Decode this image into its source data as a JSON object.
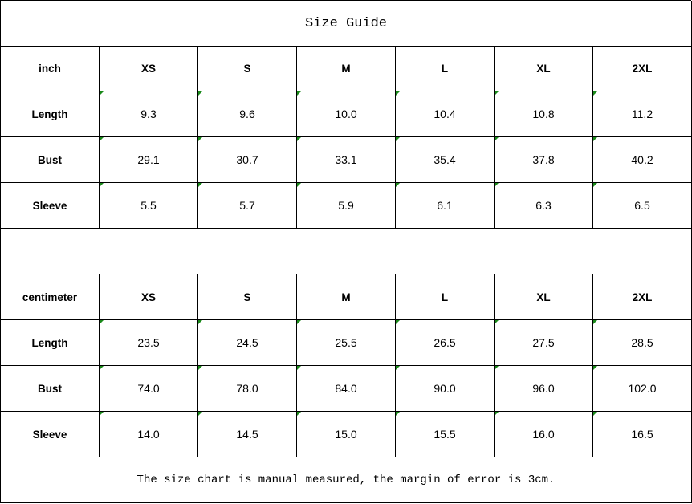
{
  "title": "Size Guide",
  "inch_table": {
    "headers": [
      "inch",
      "XS",
      "S",
      "M",
      "L",
      "XL",
      "2XL"
    ],
    "rows": [
      [
        "Length",
        "9.3",
        "9.6",
        "10.0",
        "10.4",
        "10.8",
        "11.2"
      ],
      [
        "Bust",
        "29.1",
        "30.7",
        "33.1",
        "35.4",
        "37.8",
        "40.2"
      ],
      [
        "Sleeve",
        "5.5",
        "5.7",
        "5.9",
        "6.1",
        "6.3",
        "6.5"
      ]
    ]
  },
  "cm_table": {
    "headers": [
      "centimeter",
      "XS",
      "S",
      "M",
      "L",
      "XL",
      "2XL"
    ],
    "rows": [
      [
        "Length",
        "23.5",
        "24.5",
        "25.5",
        "26.5",
        "27.5",
        "28.5"
      ],
      [
        "Bust",
        "74.0",
        "78.0",
        "84.0",
        "90.0",
        "96.0",
        "102.0"
      ],
      [
        "Sleeve",
        "14.0",
        "14.5",
        "15.0",
        "15.5",
        "16.0",
        "16.5"
      ]
    ]
  },
  "note": "The size chart is manual measured, the margin of error is 3cm.",
  "colors": {
    "error_indicator": "#1a8a1a"
  }
}
